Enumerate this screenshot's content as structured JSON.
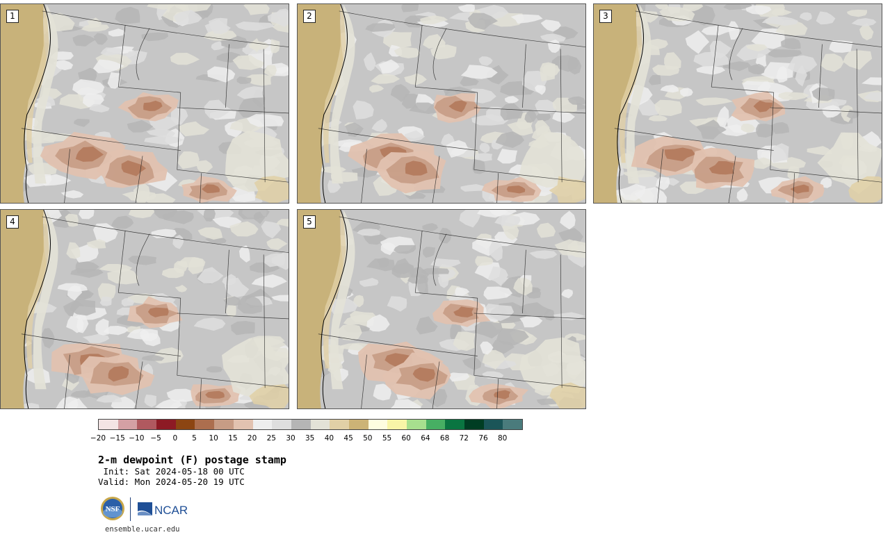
{
  "panels": [
    {
      "label": "1"
    },
    {
      "label": "2"
    },
    {
      "label": "3"
    },
    {
      "label": "4"
    },
    {
      "label": "5"
    }
  ],
  "colorbar": {
    "colors": [
      "#f3e4e4",
      "#d4a0a4",
      "#b0595f",
      "#8d1a24",
      "#8c4512",
      "#ac6e4e",
      "#c79c85",
      "#e2c2b0",
      "#eeeeee",
      "#dedede",
      "#b5b5b5",
      "#e3e2d7",
      "#e1d0a6",
      "#ccb376",
      "#fefde0",
      "#f8f5a7",
      "#a7df8e",
      "#47af63",
      "#0a7541",
      "#003d23",
      "#1b5558",
      "#4a7b7c"
    ],
    "tick_labels": [
      "−20",
      "−15",
      "−10",
      "−5",
      "0",
      "5",
      "10",
      "15",
      "20",
      "25",
      "30",
      "35",
      "40",
      "45",
      "50",
      "55",
      "60",
      "64",
      "68",
      "72",
      "76",
      "80"
    ]
  },
  "title": "2-m dewpoint (F) postage stamp",
  "init": " Init: Sat 2024-05-18 00 UTC",
  "valid": "Valid: Mon 2024-05-20 19 UTC",
  "logos": {
    "nsf": "NSF",
    "ncar": "NCAR"
  },
  "site": "ensemble.ucar.edu"
}
